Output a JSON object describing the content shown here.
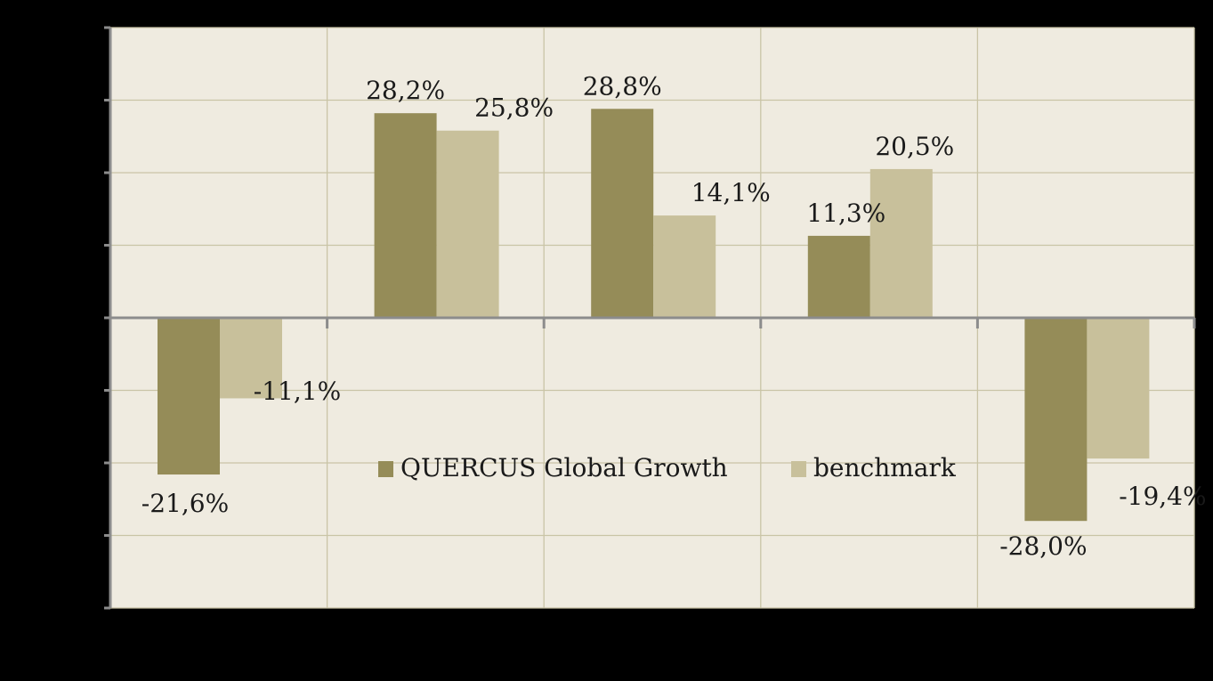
{
  "chart_data": {
    "type": "bar",
    "categories": [
      "",
      "",
      "",
      "",
      ""
    ],
    "series": [
      {
        "name": "QUERCUS Global Growth",
        "color": "#958c58",
        "values": [
          -21.6,
          28.2,
          28.8,
          11.3,
          -28.0
        ],
        "labels": [
          "-21,6%",
          "28,2%",
          "28,8%",
          "11,3%",
          "-28,0%"
        ]
      },
      {
        "name": "benchmark",
        "color": "#c8c09b",
        "values": [
          -11.1,
          25.8,
          14.1,
          20.5,
          -19.4
        ],
        "labels": [
          "-11,1%",
          "25,8%",
          "14,1%",
          "20,5%",
          "-19,4%"
        ]
      }
    ],
    "ylim": [
      -40,
      40
    ],
    "grid": true,
    "legend_position": "center",
    "title": "",
    "xlabel": "",
    "ylabel": "",
    "plot_background": "#efebe0",
    "axis_color": "#8c8c8c",
    "grid_color": "#c9c4a6"
  }
}
